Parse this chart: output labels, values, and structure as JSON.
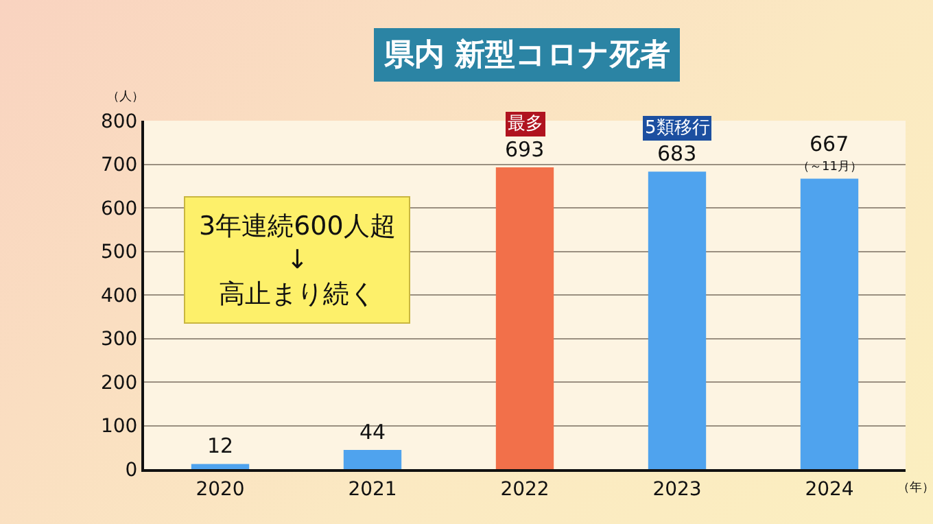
{
  "chart_data": {
    "type": "bar",
    "title": "県内 新型コロナ死者",
    "categories": [
      "2020",
      "2021",
      "2022",
      "2023",
      "2024"
    ],
    "values": [
      12,
      44,
      693,
      683,
      667
    ],
    "colors": [
      "#4fa3ee",
      "#4fa3ee",
      "#f2704a",
      "#4fa3ee",
      "#4fa3ee"
    ],
    "data_labels": true,
    "ylabel": "（人）",
    "xlabel": "（年）",
    "ylim": [
      0,
      800
    ],
    "yticks": [
      0,
      100,
      200,
      300,
      400,
      500,
      600,
      700,
      800
    ],
    "grid": "y",
    "legend": false,
    "annotations": [
      {
        "text": "最多",
        "x": "2022",
        "y": 693
      },
      {
        "text": "5類移行",
        "x": "2023",
        "y": 683
      },
      {
        "text": "（～11月）",
        "x": "2024",
        "y": 667
      },
      "3年連続600人超\n↓\n高止まり続く"
    ]
  }
}
